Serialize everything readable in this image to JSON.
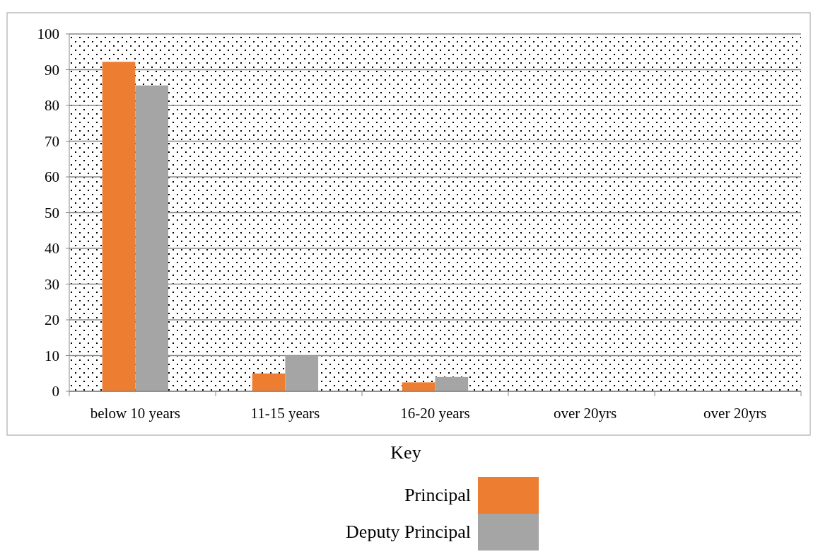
{
  "chart_data": {
    "type": "bar",
    "categories": [
      "below 10 years",
      "11-15 years",
      "16-20 years",
      "over 20yrs",
      "over 20yrs"
    ],
    "series": [
      {
        "name": "Principal",
        "color": "#ed7d31",
        "values": [
          92.2,
          5,
          2.5,
          0,
          0
        ]
      },
      {
        "name": "Deputy Principal",
        "color": "#a5a5a5",
        "values": [
          85.6,
          10,
          4,
          0,
          0
        ]
      }
    ],
    "ylim": [
      0,
      100
    ],
    "yticks": [
      0,
      10,
      20,
      30,
      40,
      50,
      60,
      70,
      80,
      90,
      100
    ],
    "grid": "y",
    "legend": "bottom",
    "legend_title": "Key"
  }
}
